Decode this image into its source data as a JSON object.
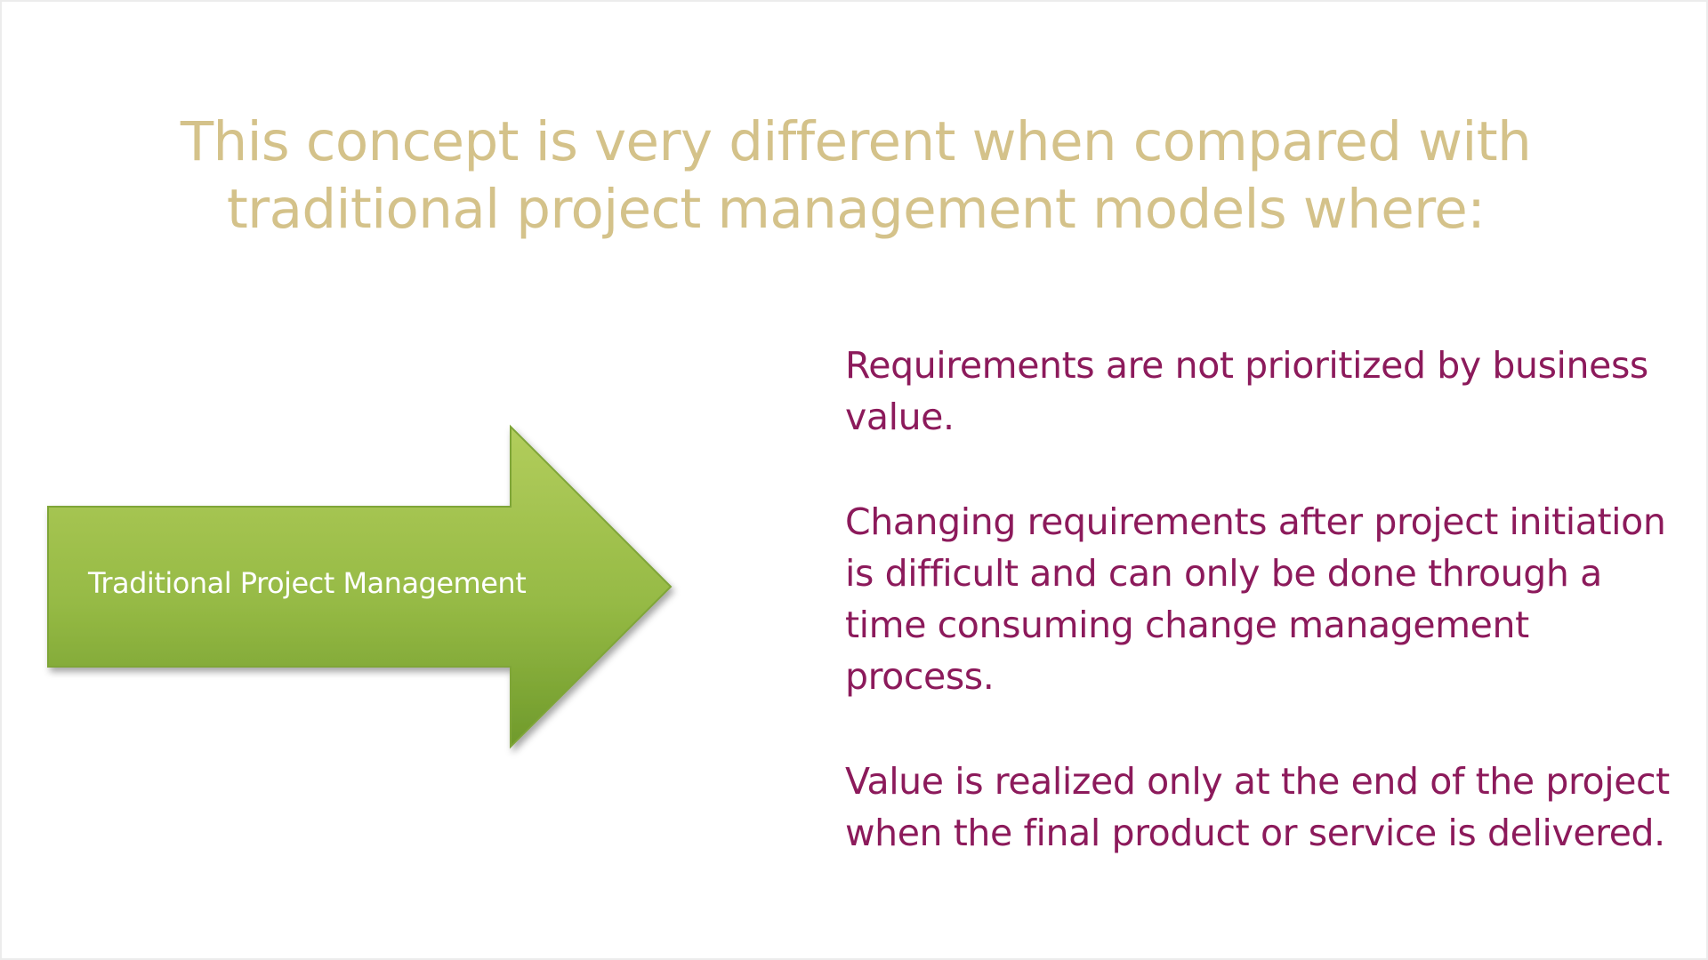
{
  "slide": {
    "title_lines": [
      "This concept is very different when compared with",
      "traditional project management models where:"
    ],
    "arrow_label": "Traditional Project Management",
    "points": [
      "Requirements are not prioritized by business value.",
      "Changing requirements after project initiation is difficult and can only be done through a time consuming change management process.",
      "Value is realized only at the end of the project when the final product or service is delivered."
    ]
  },
  "colors": {
    "title": "#d4c28a",
    "body_text": "#8c1a5b",
    "arrow_light": "#a9c64f",
    "arrow_dark": "#6f9a2b",
    "arrow_label": "#ffffff",
    "background": "#ffffff"
  }
}
